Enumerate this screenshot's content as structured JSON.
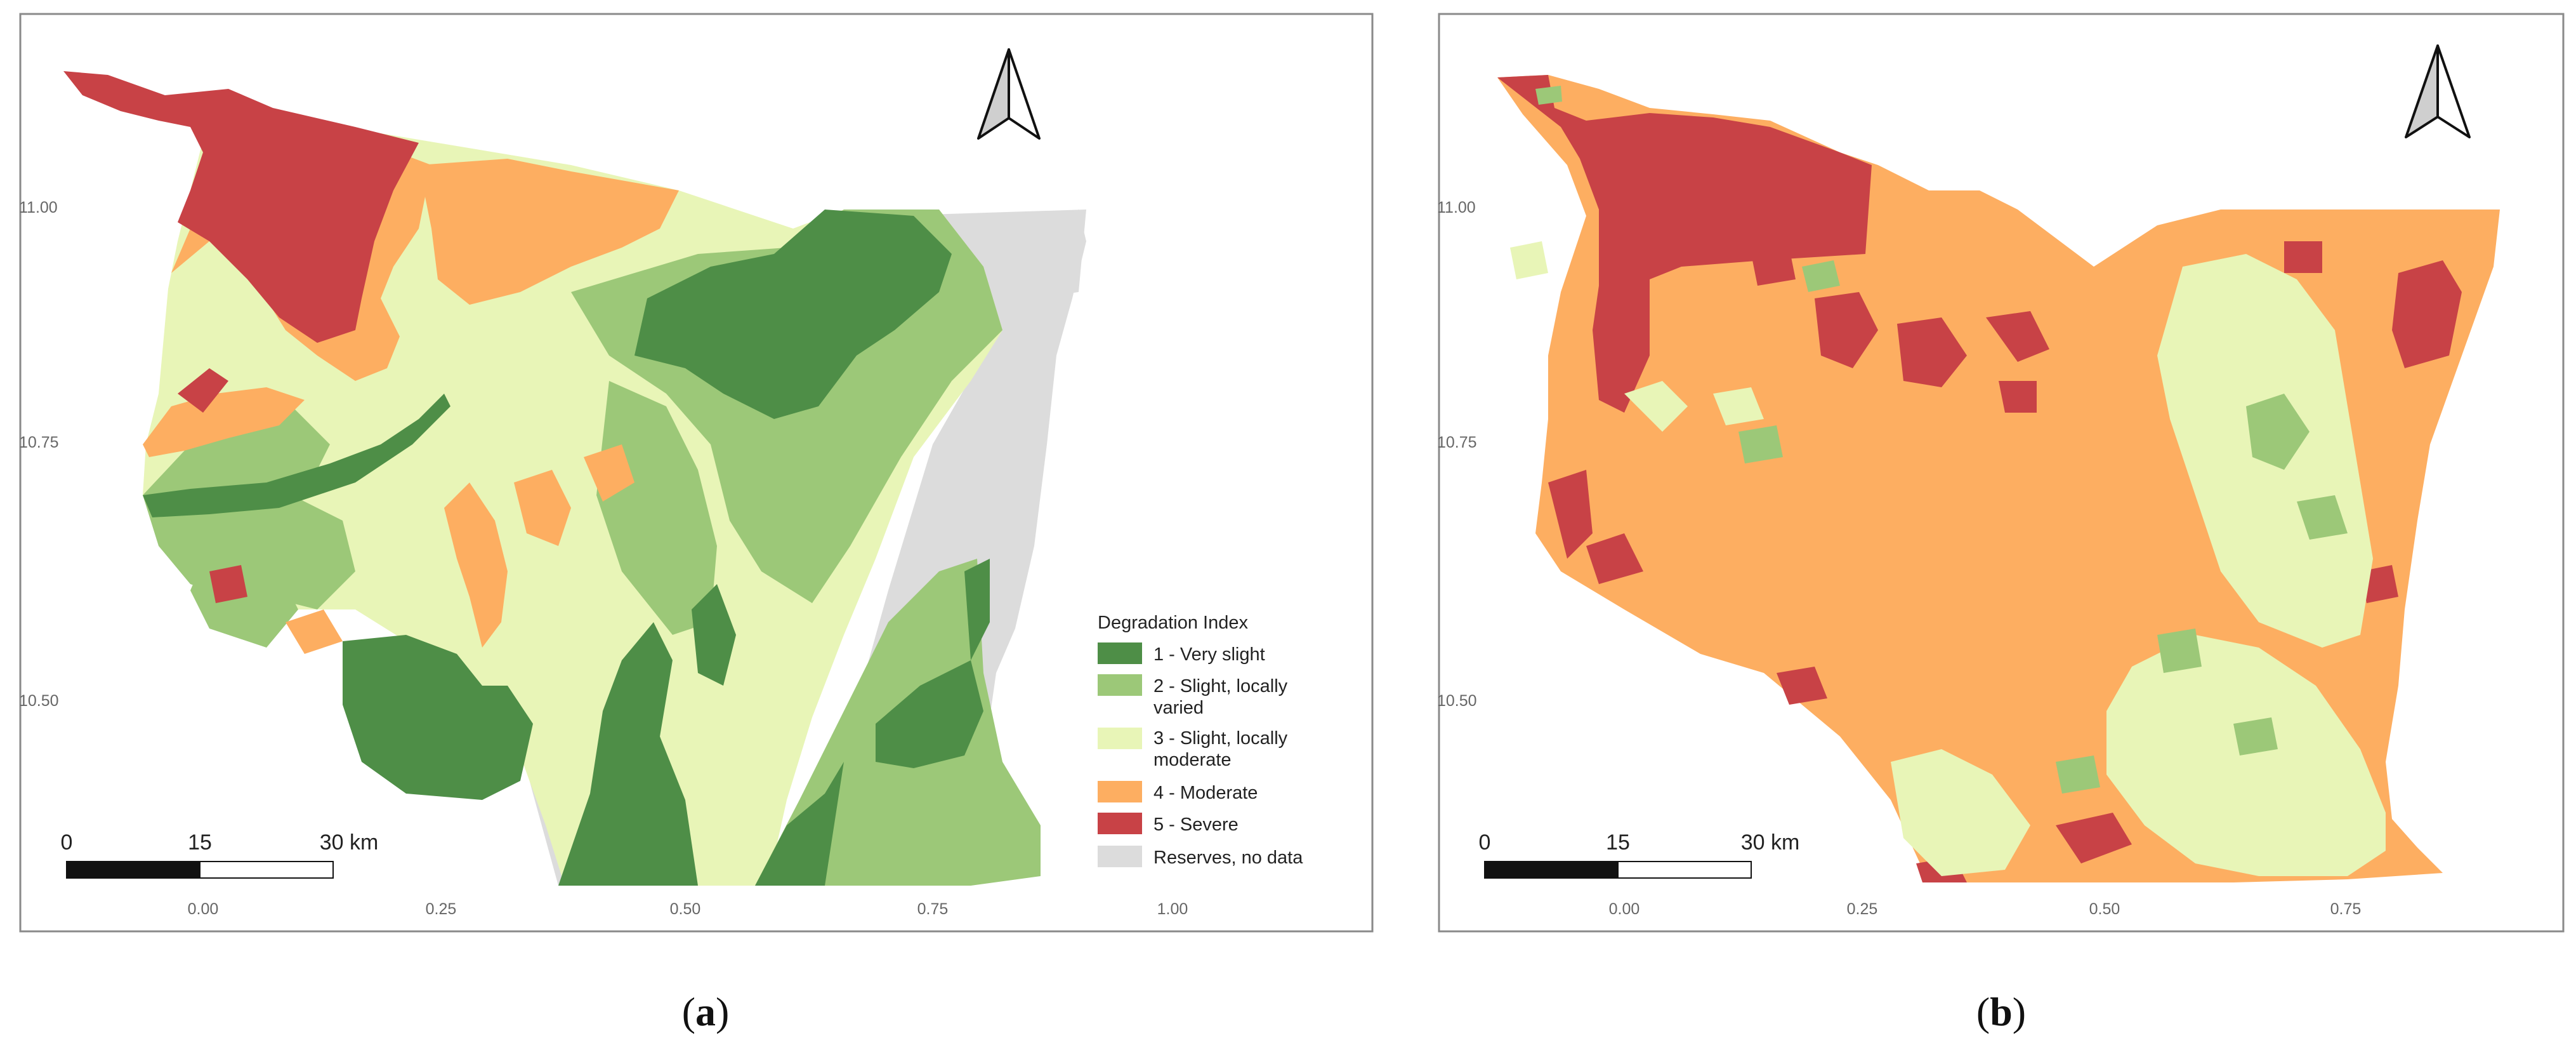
{
  "panels": [
    {
      "label_open": "(",
      "label_letter": "a",
      "label_close": ")",
      "lat_ticks": [
        "11.00",
        "10.75",
        "10.50"
      ],
      "lon_ticks": [
        "0.00",
        "0.25",
        "0.50",
        "0.75",
        "1.00"
      ],
      "scalebar": {
        "labels": [
          "0",
          "15",
          "30 km"
        ]
      },
      "north_arrow_icon": "north-arrow-icon",
      "legend": {
        "title": "Degradation Index",
        "items": [
          {
            "lines": [
              "1 - Very slight"
            ],
            "color": "#4e8e47"
          },
          {
            "lines": [
              "2 - Slight, locally",
              "varied"
            ],
            "color": "#9cc878"
          },
          {
            "lines": [
              "3 - Slight, locally",
              "moderate"
            ],
            "color": "#e8f5b7"
          },
          {
            "lines": [
              "4 - Moderate"
            ],
            "color": "#fdae61"
          },
          {
            "lines": [
              "5 - Severe"
            ],
            "color": "#c84246"
          },
          {
            "lines": [
              "Reserves, no data"
            ],
            "color": "#dcdcdc"
          }
        ]
      }
    },
    {
      "label_open": "(",
      "label_letter": "b",
      "label_close": ")",
      "lat_ticks": [
        "11.00",
        "10.75",
        "10.50"
      ],
      "lon_ticks": [
        "0.00",
        "0.25",
        "0.50",
        "0.75"
      ],
      "scalebar": {
        "labels": [
          "0",
          "15",
          "30 km"
        ]
      },
      "north_arrow_icon": "north-arrow-icon"
    }
  ]
}
